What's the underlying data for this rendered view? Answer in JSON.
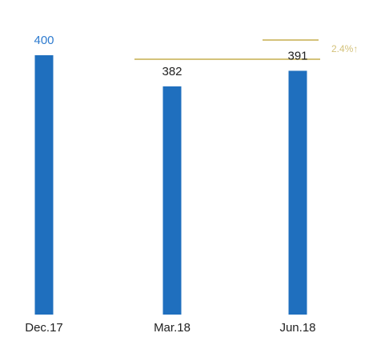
{
  "chart_data": {
    "type": "bar",
    "categories": [
      "Dec.17",
      "Mar.18",
      "Jun.18"
    ],
    "values": [
      400,
      382,
      391
    ],
    "color": "#1f6fbe",
    "label_colors": [
      "#2e7bcf",
      "#222222",
      "#222222"
    ],
    "ylim": [
      250,
      400
    ],
    "annotation": "2.4%↑",
    "annotation_color": "#d4c27a"
  }
}
